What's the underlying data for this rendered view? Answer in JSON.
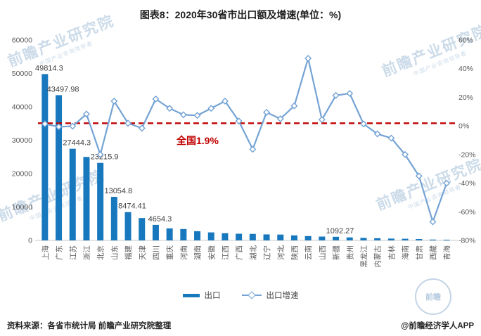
{
  "title": "图表8：2020年30省市出口额及增速(单位：%)",
  "chart_data": {
    "type": "bar+line",
    "categories": [
      "上海",
      "广东",
      "江苏",
      "浙江",
      "北京",
      "山东",
      "福建",
      "天津",
      "四川",
      "重庆",
      "河南",
      "湖南",
      "安徽",
      "江西",
      "广西",
      "湖北",
      "辽宁",
      "河北",
      "陕西",
      "云南",
      "山西",
      "新疆",
      "贵州",
      "黑龙江",
      "内蒙古",
      "吉林",
      "海南",
      "甘肃",
      "西藏",
      "青海"
    ],
    "series": [
      {
        "name": "出口",
        "type": "bar",
        "values": [
          49814.3,
          43497.98,
          27444.3,
          25000,
          23215.9,
          13054.8,
          8474.41,
          6700,
          4654.3,
          3600,
          3400,
          2750,
          2400,
          2150,
          2000,
          1950,
          1800,
          1750,
          1500,
          1300,
          1150,
          1092.27,
          900,
          750,
          650,
          550,
          500,
          420,
          250,
          120
        ]
      },
      {
        "name": "出口增速",
        "type": "line",
        "values": [
          1.4,
          -0.6,
          -0.2,
          8.3,
          -20,
          17.3,
          1.9,
          -1.6,
          18.8,
          12.3,
          7.8,
          7.3,
          12.3,
          17.3,
          3.4,
          -16.3,
          9.5,
          5,
          14,
          47.2,
          4.4,
          21.3,
          22.7,
          1.4,
          -5.6,
          -8.5,
          -20,
          -35,
          -67,
          -40
        ]
      }
    ],
    "bar_labels": [
      "49814.3",
      "43497.98",
      "27444.3",
      null,
      "23215.9",
      "13054.8",
      "8474.41",
      null,
      "4654.3",
      null,
      null,
      null,
      null,
      null,
      null,
      null,
      null,
      null,
      null,
      null,
      null,
      "1092.27",
      null,
      null,
      null,
      null,
      null,
      null,
      null,
      null
    ],
    "left_axis": {
      "min": 0,
      "max": 60000,
      "step": 10000,
      "ticks": [
        "0",
        "10000",
        "20000",
        "30000",
        "40000",
        "50000",
        "60000"
      ]
    },
    "right_axis": {
      "min": -80,
      "max": 60,
      "step": 20,
      "ticks": [
        "-80%",
        "-60%",
        "-40%",
        "-20%",
        "0%",
        "20%",
        "40%",
        "60%"
      ]
    },
    "reference_line": {
      "value": 1.9,
      "prefix": "全国",
      "text": "1.9%",
      "color": "#C00000"
    },
    "legend_position": "bottom",
    "grid": false,
    "colors": {
      "bar": "#1878BE",
      "line": "#74A3D4",
      "reference": "#C00000",
      "axis_text": "#595959",
      "label_text": "#404040",
      "axis_line": "#C9C9C9"
    }
  },
  "footer": {
    "source": "资料来源：各省市统计局 前瞻产业研究院整理",
    "credit": "@前瞻经济学人APP"
  },
  "watermark": {
    "text": "前瞻产业研究院",
    "subtext": "中国产业咨询领导者",
    "seal_text": "前瞻"
  }
}
